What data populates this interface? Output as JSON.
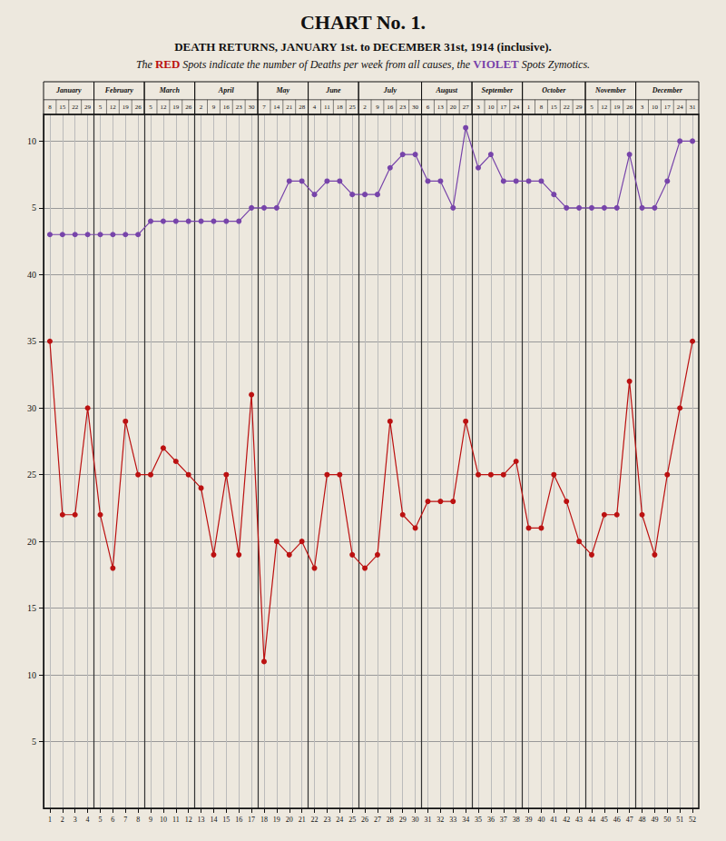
{
  "chart_data": {
    "type": "line",
    "title": "CHART No. 1.",
    "subtitle": "DEATH RETURNS, JANUARY 1st. to DECEMBER 31st, 1914 (inclusive).",
    "legend_text": [
      {
        "text": "The "
      },
      {
        "text": "RED",
        "color": "#bb1111"
      },
      {
        "text": " Spots indicate the number of Deaths per week from all causes, the "
      },
      {
        "text": "VIOLET",
        "color": "#7744aa"
      },
      {
        "text": " Spots Zymotics."
      }
    ],
    "background_color": "#ede8de",
    "marker": "circle",
    "grid": true,
    "x": [
      1,
      2,
      3,
      4,
      5,
      6,
      7,
      8,
      9,
      10,
      11,
      12,
      13,
      14,
      15,
      16,
      17,
      18,
      19,
      20,
      21,
      22,
      23,
      24,
      25,
      26,
      27,
      28,
      29,
      30,
      31,
      32,
      33,
      34,
      35,
      36,
      37,
      38,
      39,
      40,
      41,
      42,
      43,
      44,
      45,
      46,
      47,
      48,
      49,
      50,
      51,
      52
    ],
    "xlim": [
      0.5,
      52.5
    ],
    "xticks": [
      1,
      2,
      3,
      4,
      5,
      6,
      7,
      8,
      9,
      10,
      11,
      12,
      13,
      14,
      15,
      16,
      17,
      18,
      19,
      20,
      21,
      22,
      23,
      24,
      25,
      26,
      27,
      28,
      29,
      30,
      31,
      32,
      33,
      34,
      35,
      36,
      37,
      38,
      39,
      40,
      41,
      42,
      43,
      44,
      45,
      46,
      47,
      48,
      49,
      50,
      51,
      52
    ],
    "ylim": [
      0,
      52
    ],
    "yticks": [
      5,
      10,
      15,
      20,
      25,
      30,
      35,
      40
    ],
    "y2lim": [
      -40,
      12
    ],
    "y2ticks": [
      5,
      10
    ],
    "series": [
      {
        "color": "#bb1111",
        "values": [
          35,
          22,
          22,
          30,
          22,
          18,
          29,
          25,
          25,
          27,
          26,
          25,
          24,
          19,
          25,
          19,
          31,
          11,
          20,
          19,
          20,
          18,
          25,
          25,
          19,
          18,
          19,
          29,
          22,
          21,
          23,
          23,
          23,
          29,
          25,
          25,
          25,
          26,
          21,
          21,
          25,
          23,
          20,
          19,
          22,
          22,
          32,
          22,
          19,
          25,
          30,
          35
        ]
      },
      {
        "color": "#7744aa",
        "axis": "y2",
        "values": [
          3,
          3,
          3,
          3,
          3,
          3,
          3,
          3,
          4,
          4,
          4,
          4,
          4,
          4,
          4,
          4,
          5,
          5,
          5,
          7,
          7,
          6,
          7,
          7,
          6,
          6,
          6,
          8,
          9,
          9,
          7,
          7,
          5,
          11,
          8,
          9,
          7,
          7,
          7,
          7,
          6,
          5,
          5,
          5,
          5,
          5,
          9,
          5,
          5,
          7,
          10,
          10
        ]
      }
    ],
    "months": [
      {
        "name": "January",
        "weeks": [
          1,
          4
        ],
        "dates": [
          8,
          15,
          22,
          29
        ]
      },
      {
        "name": "February",
        "weeks": [
          5,
          8
        ],
        "dates": [
          5,
          12,
          19,
          26
        ]
      },
      {
        "name": "March",
        "weeks": [
          9,
          12
        ],
        "dates": [
          5,
          12,
          19,
          26
        ]
      },
      {
        "name": "April",
        "weeks": [
          13,
          17
        ],
        "dates": [
          2,
          9,
          16,
          23,
          30
        ]
      },
      {
        "name": "May",
        "weeks": [
          18,
          21
        ],
        "dates": [
          7,
          14,
          21,
          28
        ]
      },
      {
        "name": "June",
        "weeks": [
          22,
          25
        ],
        "dates": [
          4,
          11,
          18,
          25
        ]
      },
      {
        "name": "July",
        "weeks": [
          26,
          30
        ],
        "dates": [
          2,
          9,
          16,
          23,
          30
        ]
      },
      {
        "name": "August",
        "weeks": [
          31,
          34
        ],
        "dates": [
          6,
          13,
          20,
          27
        ]
      },
      {
        "name": "September",
        "weeks": [
          35,
          38
        ],
        "dates": [
          3,
          10,
          17,
          24
        ]
      },
      {
        "name": "October",
        "weeks": [
          39,
          43
        ],
        "dates": [
          1,
          8,
          15,
          22,
          29
        ]
      },
      {
        "name": "November",
        "weeks": [
          44,
          47
        ],
        "dates": [
          5,
          12,
          19,
          26
        ]
      },
      {
        "name": "December",
        "weeks": [
          48,
          52
        ],
        "dates": [
          3,
          10,
          17,
          24,
          31
        ]
      }
    ]
  }
}
